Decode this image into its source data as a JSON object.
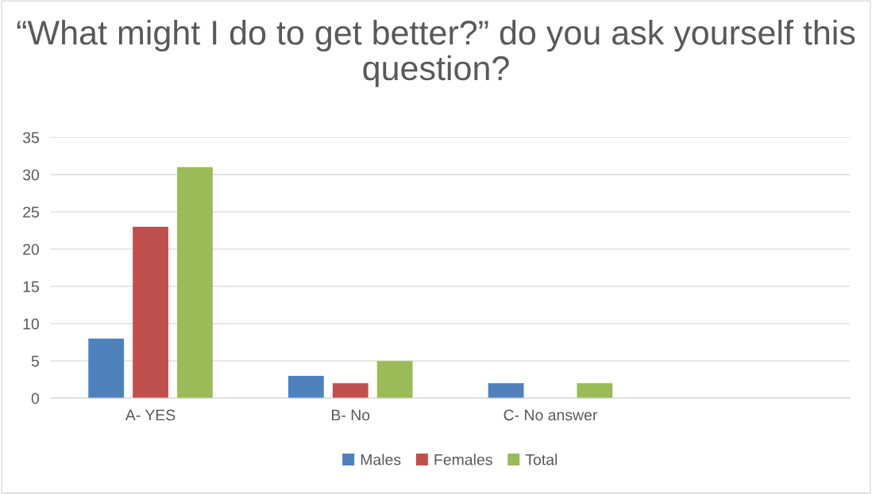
{
  "chart_data": {
    "type": "bar",
    "title": "“What might I do to get better?” do you ask yourself this question?",
    "categories": [
      "A- YES",
      "B- No",
      "C- No answer",
      null
    ],
    "series": [
      {
        "name": "Males",
        "color": "#4f81bd",
        "values": [
          8,
          3,
          2,
          null
        ]
      },
      {
        "name": "Females",
        "color": "#c0504d",
        "values": [
          23,
          2,
          0,
          null
        ]
      },
      {
        "name": "Total",
        "color": "#9bbb59",
        "values": [
          31,
          5,
          2,
          null
        ]
      }
    ],
    "ylim": [
      0,
      35
    ],
    "yticks": [
      0,
      5,
      10,
      15,
      20,
      25,
      30,
      35
    ],
    "grid": "y",
    "legend": "bottom"
  }
}
